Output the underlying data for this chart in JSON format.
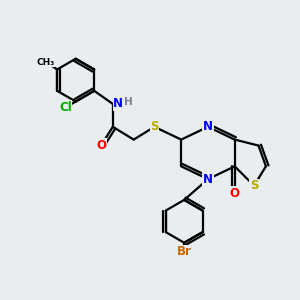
{
  "background_color": "#e8edf0",
  "bond_color": "#000000",
  "bond_width": 1.6,
  "atom_colors": {
    "N": "#0000ff",
    "O": "#ff0000",
    "S": "#bbaa00",
    "Cl": "#00aa00",
    "Br": "#cc6600",
    "H": "#808080",
    "C": "#000000"
  },
  "font_size": 8.5,
  "fig_width": 3.0,
  "fig_height": 3.0,
  "dpi": 100
}
